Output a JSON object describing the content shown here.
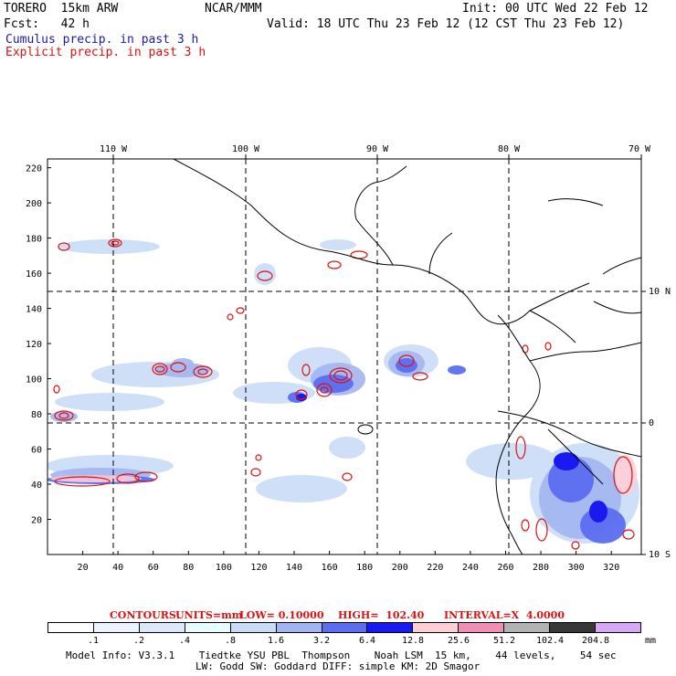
{
  "header": {
    "model": "TORERO  15km ARW",
    "center": "NCAR/MMM",
    "init": "Init: 00 UTC Wed 22 Feb 12",
    "fcst": "Fcst:   42 h",
    "valid": "Valid: 18 UTC Thu 23 Feb 12 (12 CST Thu 23 Feb 12)",
    "field1": "Cumulus precip. in past 3 h",
    "field2": "Explicit precip. in past 3 h"
  },
  "top_labels": [
    "110 W",
    "100 W",
    "90 W",
    "80 W",
    "70 W"
  ],
  "right_labels": [
    "10 N",
    "0",
    "10 S"
  ],
  "y_ticks": [
    "220",
    "200",
    "180",
    "160",
    "140",
    "120",
    "100",
    "80",
    "60",
    "40",
    "20"
  ],
  "x_ticks": [
    "20",
    "40",
    "60",
    "80",
    "100",
    "120",
    "140",
    "160",
    "180",
    "200",
    "220",
    "240",
    "260",
    "280",
    "300",
    "320"
  ],
  "contours": {
    "label": "CONTOURS:",
    "units": "UNITS=mm",
    "low": "LOW= 0.10000",
    "high": "HIGH=  102.40",
    "interval": "INTERVAL=X  4.0000"
  },
  "legend": {
    "labels": [
      ".1",
      ".2",
      ".4",
      ".8",
      "1.6",
      "3.2",
      "6.4",
      "12.8",
      "25.6",
      "51.2",
      "102.4",
      "204.8",
      "mm"
    ],
    "colors": [
      "#ffffff",
      "#eef4ff",
      "#dde9fb",
      "#e5ffff",
      "#c9dcf7",
      "#a3b5f0",
      "#5c6ef0",
      "#1a1af0",
      "#ffcfd6",
      "#f08fb4",
      "#b2b2b2",
      "#383838",
      "#d6a8f5"
    ]
  },
  "footer": {
    "line1": "Model Info: V3.3.1    Tiedtke YSU PBL  Thompson    Noah LSM  15 km,    44 levels,    54 sec",
    "line2": "LW: Godd SW: Goddard DIFF: simple KM: 2D Smagor"
  }
}
